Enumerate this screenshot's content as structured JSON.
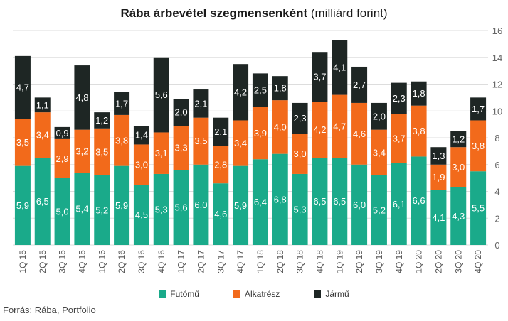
{
  "title": {
    "main": "Rába árbevétel szegmensenként",
    "unit": "(milliárd forint)"
  },
  "source": "Forrás: Rába, Portfolio",
  "chart_data": {
    "type": "bar",
    "stacked": true,
    "categories": [
      "1Q 15",
      "2Q 15",
      "3Q 15",
      "4Q 15",
      "1Q 16",
      "2Q 16",
      "3Q 16",
      "4Q 16",
      "1Q 17",
      "2Q 17",
      "3Q 17",
      "4Q 17",
      "1Q 18",
      "2Q 18",
      "3Q 18",
      "4Q 18",
      "1Q 19",
      "2Q 19",
      "3Q 19",
      "4Q 19",
      "1Q 20",
      "2Q 20",
      "3Q 20",
      "4Q 20"
    ],
    "series": [
      {
        "name": "Futómű",
        "color": "#1aaa8a",
        "values": [
          5.9,
          6.5,
          5.0,
          5.4,
          5.2,
          5.9,
          4.5,
          5.3,
          5.6,
          6.0,
          4.6,
          5.9,
          6.4,
          6.8,
          5.3,
          6.5,
          6.5,
          6.0,
          5.2,
          6.1,
          6.6,
          4.1,
          4.3,
          5.5
        ],
        "labels": [
          "5,9",
          "6,5",
          "5,0",
          "5,4",
          "5,2",
          "5,9",
          "4,5",
          "5,3",
          "5,6",
          "6,0",
          "4,6",
          "5,9",
          "6,4",
          "6,8",
          "5,3",
          "6,5",
          "6,5",
          "6,0",
          "5,2",
          "6,1",
          "6,6",
          "4,1",
          "4,3",
          "5,5"
        ]
      },
      {
        "name": "Alkatrész",
        "color": "#f26a1b",
        "values": [
          3.5,
          3.4,
          2.9,
          3.2,
          3.5,
          3.8,
          3.0,
          3.1,
          3.3,
          3.5,
          2.8,
          3.4,
          3.9,
          4.0,
          3.0,
          4.2,
          4.7,
          4.6,
          3.4,
          3.7,
          3.8,
          1.9,
          3.0,
          3.8
        ],
        "labels": [
          "3,5",
          "3,4",
          "2,9",
          "3,2",
          "3,5",
          "3,8",
          "3,0",
          "3,1",
          "3,3",
          "3,5",
          "2,8",
          "3,4",
          "3,9",
          "4,0",
          "3,0",
          "4,2",
          "4,7",
          "4,6",
          "3,4",
          "3,7",
          "3,8",
          "1,9",
          "3,0",
          "3,8"
        ]
      },
      {
        "name": "Jármű",
        "color": "#1e2624",
        "values": [
          4.7,
          1.1,
          0.9,
          4.8,
          1.2,
          1.7,
          1.4,
          5.6,
          2.0,
          2.1,
          2.1,
          4.2,
          2.5,
          1.8,
          2.3,
          3.7,
          4.1,
          2.7,
          2.0,
          2.3,
          1.8,
          1.3,
          1.2,
          1.7
        ],
        "labels": [
          "4,7",
          "1,1",
          "0,9",
          "4,8",
          "1,2",
          "1,7",
          "1,4",
          "5,6",
          "2,0",
          "2,1",
          "2,1",
          "4,2",
          "2,5",
          "1,8",
          "2,3",
          "3,7",
          "4,1",
          "2,7",
          "2,0",
          "2,3",
          "1,8",
          "1,3",
          "1,2",
          "1,7"
        ]
      }
    ],
    "y_axis": {
      "position": "right",
      "min": 0,
      "max": 16,
      "ticks": [
        0,
        2,
        4,
        6,
        8,
        10,
        12,
        14,
        16
      ]
    },
    "grid": true,
    "legend": "bottom"
  }
}
